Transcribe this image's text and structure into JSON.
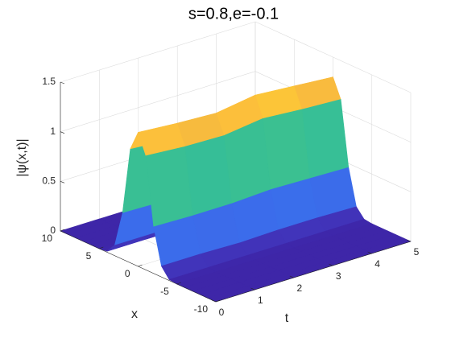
{
  "chart_data": {
    "type": "surface",
    "title": "s=0.8,e=-0.1",
    "xlabel": "t",
    "ylabel": "x",
    "zlabel": "|ψ(x,t)|",
    "t": [
      0,
      1,
      2,
      3,
      4,
      5
    ],
    "x": [
      -10,
      -9,
      -8,
      -7,
      -6,
      -5,
      -4,
      -3,
      -2,
      -1,
      0,
      1,
      2,
      3,
      4,
      5,
      6,
      7,
      8,
      9,
      10
    ],
    "z": [
      [
        0,
        0,
        0,
        0,
        0,
        0,
        0.01,
        0.11,
        0.47,
        1.15,
        1.35,
        1.15,
        0.47,
        0.11,
        0.01,
        0,
        0,
        0,
        0,
        0,
        0
      ],
      [
        0,
        0,
        0,
        0,
        0,
        0,
        0.01,
        0.11,
        0.46,
        1.12,
        1.32,
        1.12,
        0.46,
        0.11,
        0.01,
        0,
        0,
        0,
        0,
        0,
        0
      ],
      [
        0,
        0,
        0,
        0,
        0,
        0,
        0.01,
        0.1,
        0.46,
        1.11,
        1.3,
        1.11,
        0.46,
        0.1,
        0.01,
        0,
        0,
        0,
        0,
        0,
        0
      ],
      [
        0,
        0,
        0,
        0,
        0,
        0,
        0.01,
        0.11,
        0.48,
        1.16,
        1.36,
        1.16,
        0.48,
        0.11,
        0.01,
        0,
        0,
        0,
        0,
        0,
        0
      ],
      [
        0,
        0,
        0,
        0,
        0,
        0,
        0.01,
        0.11,
        0.47,
        1.13,
        1.33,
        1.13,
        0.47,
        0.11,
        0.01,
        0,
        0,
        0,
        0,
        0,
        0
      ],
      [
        0,
        0,
        0,
        0,
        0,
        0,
        0.01,
        0.1,
        0.46,
        1.11,
        1.3,
        1.11,
        0.46,
        0.1,
        0.01,
        0,
        0,
        0,
        0,
        0,
        0
      ]
    ],
    "tlim": [
      0,
      5
    ],
    "xlim": [
      -10,
      10
    ],
    "zlim": [
      0,
      1.5
    ],
    "tticks": [
      0,
      1,
      2,
      3,
      4,
      5
    ],
    "xticks": [
      -10,
      -5,
      0,
      5,
      10
    ],
    "zticks": [
      0,
      0.5,
      1,
      1.5
    ],
    "grid": true,
    "colormap": "parula"
  }
}
